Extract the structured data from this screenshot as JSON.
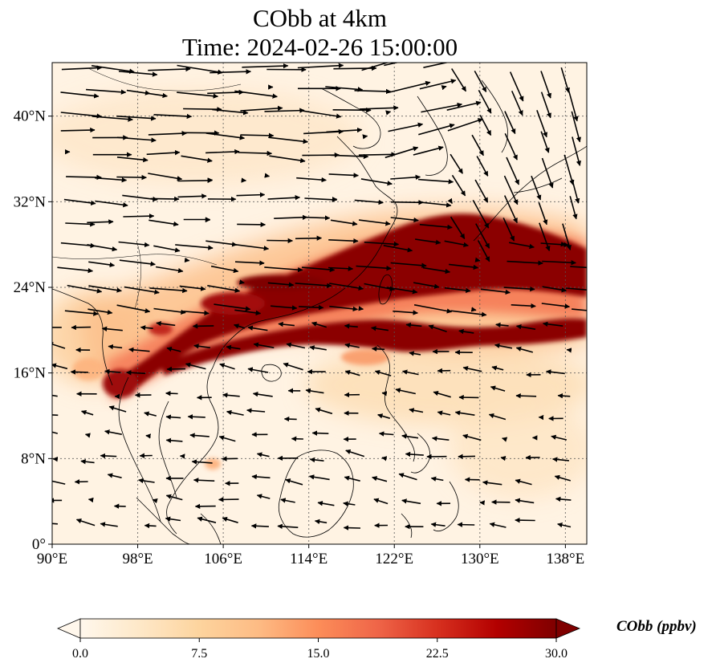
{
  "title": {
    "line1": "CObb at 4km",
    "line2": "Time: 2024-02-26 15:00:00"
  },
  "map": {
    "lon_range": [
      90,
      140
    ],
    "lat_range": [
      0,
      45
    ],
    "lon_ticks": [
      {
        "value": 90,
        "label": "90°E"
      },
      {
        "value": 98,
        "label": "98°E"
      },
      {
        "value": 106,
        "label": "106°E"
      },
      {
        "value": 114,
        "label": "114°E"
      },
      {
        "value": 122,
        "label": "122°E"
      },
      {
        "value": 130,
        "label": "130°E"
      },
      {
        "value": 138,
        "label": "138°E"
      }
    ],
    "lat_ticks": [
      {
        "value": 0,
        "label": "0°"
      },
      {
        "value": 8,
        "label": "8°N"
      },
      {
        "value": 16,
        "label": "16°N"
      },
      {
        "value": 24,
        "label": "24°N"
      },
      {
        "value": 32,
        "label": "32°N"
      },
      {
        "value": 40,
        "label": "40°N"
      }
    ],
    "gridlines": true,
    "plume": {
      "description_color": "#7f0000",
      "center_line": [
        [
          96,
          15
        ],
        [
          100,
          17.5
        ],
        [
          104,
          20
        ],
        [
          108,
          22
        ],
        [
          112,
          23.5
        ],
        [
          116,
          24.5
        ],
        [
          120,
          25.5
        ],
        [
          124,
          27
        ],
        [
          128,
          27.5
        ],
        [
          132,
          27
        ],
        [
          136,
          26
        ],
        [
          140,
          24.5
        ]
      ],
      "lower_branch": [
        [
          104,
          19
        ],
        [
          110,
          20.5
        ],
        [
          116,
          21.5
        ],
        [
          122,
          21
        ],
        [
          126,
          20
        ],
        [
          130,
          20.5
        ],
        [
          136,
          21
        ],
        [
          140,
          20
        ]
      ]
    },
    "wind_field": "westerlies north of ~20°N, easterlies south of ~20°N, northwesterlies over Japan"
  },
  "colorbar": {
    "min": 0.0,
    "max": 30.0,
    "extend": "both",
    "ticks": [
      "0.0",
      "7.5",
      "15.0",
      "22.5",
      "30.0"
    ],
    "label": "CObb (ppbv)",
    "colormap": [
      "#fff7ec",
      "#fee8c8",
      "#fdd49e",
      "#fdbb84",
      "#fc8d59",
      "#ef6548",
      "#d7301f",
      "#b30000",
      "#7f0000"
    ]
  }
}
